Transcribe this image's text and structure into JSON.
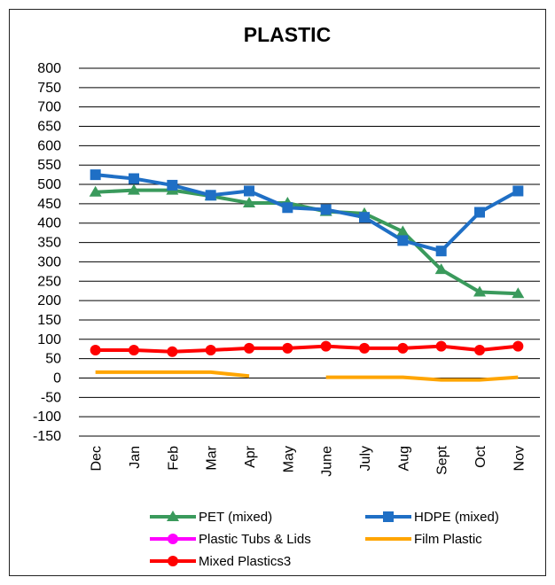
{
  "chart_data": {
    "type": "line",
    "title": "PLASTIC",
    "xlabel": "",
    "ylabel": "",
    "ylim": [
      -150,
      800
    ],
    "yticks": [
      800,
      750,
      700,
      650,
      600,
      550,
      500,
      450,
      400,
      350,
      300,
      250,
      200,
      150,
      100,
      50,
      0,
      -50,
      -100,
      -150
    ],
    "grid": true,
    "legend": "bottom",
    "categories": [
      "Dec",
      "Jan",
      "Feb",
      "Mar",
      "Apr",
      "May",
      "June",
      "July",
      "Aug",
      "Sept",
      "Oct",
      "Nov"
    ],
    "series": [
      {
        "name": "PET (mixed)",
        "color": "#3a9a5c",
        "marker": "triangle",
        "values": [
          480,
          485,
          485,
          470,
          452,
          452,
          430,
          425,
          378,
          280,
          222,
          218
        ]
      },
      {
        "name": "HDPE (mixed)",
        "color": "#1f6fc5",
        "marker": "square",
        "values": [
          525,
          515,
          498,
          472,
          483,
          440,
          435,
          415,
          355,
          328,
          428,
          483
        ]
      },
      {
        "name": "Plastic Tubs & Lids",
        "color": "#ff00ff",
        "marker": "circle",
        "values": [
          null,
          null,
          null,
          null,
          null,
          null,
          null,
          null,
          null,
          null,
          null,
          null
        ]
      },
      {
        "name": "Film Plastic",
        "color": "#ffa500",
        "marker": "none",
        "values": [
          15,
          15,
          15,
          15,
          5,
          null,
          2,
          2,
          2,
          -5,
          -5,
          2
        ]
      },
      {
        "name": "Mixed Plastics3",
        "color": "#ff0000",
        "marker": "circle",
        "values": [
          72,
          72,
          68,
          72,
          77,
          77,
          82,
          77,
          77,
          82,
          72,
          82
        ]
      }
    ]
  }
}
